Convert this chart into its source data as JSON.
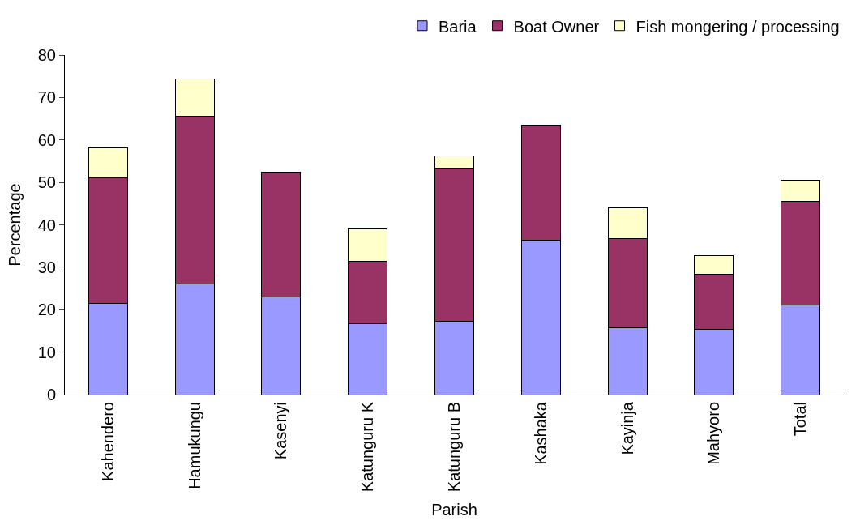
{
  "chart_data": {
    "type": "bar",
    "stacked": true,
    "xlabel": "Parish",
    "ylabel": "Percentage",
    "categories": [
      "Kahendero",
      "Hamukungu",
      "Kasenyi",
      "Katunguru K",
      "Katunguru B",
      "Kashaka",
      "Kayinja",
      "Mahyoro",
      "Total"
    ],
    "series": [
      {
        "name": "Baria",
        "color": "#9999ff",
        "values": [
          21.4,
          26.0,
          23.0,
          16.8,
          17.2,
          36.4,
          15.7,
          15.3,
          21.1
        ]
      },
      {
        "name": "Boat Owner",
        "color": "#993366",
        "values": [
          29.7,
          39.5,
          29.4,
          14.6,
          36.2,
          27.1,
          21.0,
          13.0,
          24.4
        ]
      },
      {
        "name": "Fish mongering / processing",
        "color": "#ffffcc",
        "values": [
          7.1,
          8.8,
          null,
          7.6,
          2.9,
          null,
          7.3,
          4.4,
          5.0
        ]
      }
    ],
    "ylim": [
      0,
      80
    ],
    "yticks": [
      0,
      10,
      20,
      30,
      40,
      50,
      60,
      70,
      80
    ],
    "legend": "top right"
  }
}
